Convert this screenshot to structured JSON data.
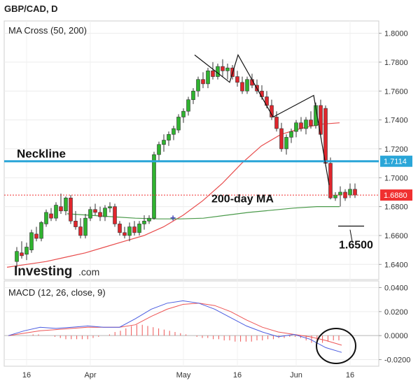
{
  "title": "GBP/CAD, D",
  "chart_data": [
    {
      "type": "candlestick",
      "indicator_label": "MA Cross (50, 200)",
      "y_ticks": [
        "1.8000",
        "1.7800",
        "1.7600",
        "1.7400",
        "1.7200",
        "1.7000",
        "1.6800",
        "1.6600",
        "1.6400"
      ],
      "y_tick_values": [
        1.8,
        1.78,
        1.76,
        1.74,
        1.72,
        1.7,
        1.68,
        1.66,
        1.64
      ],
      "ylim": [
        1.6295,
        1.8085
      ],
      "x_ticks": [
        "16",
        "Apr",
        "May",
        "16",
        "Jun",
        "16"
      ],
      "annotations": {
        "neckline_label": "Neckline",
        "neckline_value": 1.7114,
        "neckline_tag": "1.7114",
        "price_value": 1.688,
        "price_tag": "1.6880",
        "ma200_label": "200-day MA",
        "target_label": "1.6500",
        "brand": "Investing",
        "brand_suffix": ".com"
      },
      "candles": [
        [
          1.642,
          1.652,
          1.638,
          1.649
        ],
        [
          1.648,
          1.656,
          1.644,
          1.646
        ],
        [
          1.647,
          1.655,
          1.643,
          1.652
        ],
        [
          1.65,
          1.664,
          1.648,
          1.662
        ],
        [
          1.661,
          1.666,
          1.656,
          1.658
        ],
        [
          1.658,
          1.67,
          1.656,
          1.669
        ],
        [
          1.668,
          1.678,
          1.666,
          1.676
        ],
        [
          1.675,
          1.679,
          1.67,
          1.672
        ],
        [
          1.672,
          1.683,
          1.67,
          1.681
        ],
        [
          1.68,
          1.689,
          1.675,
          1.677
        ],
        [
          1.677,
          1.687,
          1.674,
          1.686
        ],
        [
          1.686,
          1.688,
          1.668,
          1.67
        ],
        [
          1.67,
          1.677,
          1.664,
          1.666
        ],
        [
          1.666,
          1.672,
          1.658,
          1.66
        ],
        [
          1.66,
          1.675,
          1.658,
          1.672
        ],
        [
          1.672,
          1.68,
          1.67,
          1.678
        ],
        [
          1.678,
          1.682,
          1.674,
          1.676
        ],
        [
          1.676,
          1.68,
          1.67,
          1.673
        ],
        [
          1.673,
          1.681,
          1.67,
          1.679
        ],
        [
          1.679,
          1.683,
          1.676,
          1.68
        ],
        [
          1.68,
          1.682,
          1.666,
          1.668
        ],
        [
          1.668,
          1.67,
          1.66,
          1.662
        ],
        [
          1.662,
          1.666,
          1.658,
          1.66
        ],
        [
          1.66,
          1.669,
          1.656,
          1.666
        ],
        [
          1.666,
          1.67,
          1.66,
          1.662
        ],
        [
          1.662,
          1.67,
          1.66,
          1.668
        ],
        [
          1.668,
          1.674,
          1.664,
          1.67
        ],
        [
          1.67,
          1.674,
          1.668,
          1.672
        ],
        [
          1.672,
          1.718,
          1.671,
          1.716
        ],
        [
          1.716,
          1.725,
          1.712,
          1.723
        ],
        [
          1.723,
          1.73,
          1.718,
          1.726
        ],
        [
          1.726,
          1.732,
          1.722,
          1.73
        ],
        [
          1.73,
          1.736,
          1.726,
          1.734
        ],
        [
          1.733,
          1.744,
          1.731,
          1.742
        ],
        [
          1.742,
          1.748,
          1.738,
          1.746
        ],
        [
          1.746,
          1.756,
          1.743,
          1.754
        ],
        [
          1.754,
          1.762,
          1.751,
          1.76
        ],
        [
          1.76,
          1.77,
          1.756,
          1.768
        ],
        [
          1.768,
          1.773,
          1.762,
          1.765
        ],
        [
          1.765,
          1.776,
          1.762,
          1.774
        ],
        [
          1.774,
          1.78,
          1.768,
          1.77
        ],
        [
          1.77,
          1.779,
          1.768,
          1.777
        ],
        [
          1.777,
          1.782,
          1.77,
          1.774
        ],
        [
          1.774,
          1.779,
          1.768,
          1.776
        ],
        [
          1.776,
          1.778,
          1.768,
          1.77
        ],
        [
          1.77,
          1.774,
          1.763,
          1.766
        ],
        [
          1.766,
          1.77,
          1.758,
          1.76
        ],
        [
          1.76,
          1.77,
          1.758,
          1.768
        ],
        [
          1.768,
          1.772,
          1.762,
          1.764
        ],
        [
          1.764,
          1.768,
          1.758,
          1.76
        ],
        [
          1.76,
          1.764,
          1.754,
          1.756
        ],
        [
          1.756,
          1.76,
          1.748,
          1.75
        ],
        [
          1.75,
          1.754,
          1.74,
          1.742
        ],
        [
          1.742,
          1.746,
          1.732,
          1.734
        ],
        [
          1.734,
          1.738,
          1.718,
          1.72
        ],
        [
          1.72,
          1.73,
          1.716,
          1.728
        ],
        [
          1.728,
          1.734,
          1.724,
          1.732
        ],
        [
          1.732,
          1.74,
          1.728,
          1.738
        ],
        [
          1.738,
          1.742,
          1.732,
          1.734
        ],
        [
          1.734,
          1.742,
          1.73,
          1.74
        ],
        [
          1.74,
          1.746,
          1.734,
          1.736
        ],
        [
          1.736,
          1.752,
          1.734,
          1.75
        ],
        [
          1.75,
          1.754,
          1.728,
          1.73
        ],
        [
          1.748,
          1.75,
          1.708,
          1.71
        ],
        [
          1.71,
          1.714,
          1.685,
          1.686
        ],
        [
          1.686,
          1.69,
          1.684,
          1.688
        ],
        [
          1.688,
          1.694,
          1.68,
          1.69
        ],
        [
          1.69,
          1.692,
          1.684,
          1.686
        ],
        [
          1.688,
          1.696,
          1.686,
          1.692
        ],
        [
          1.692,
          1.696,
          1.686,
          1.688
        ]
      ],
      "sma50": [
        1.638,
        1.64,
        1.642,
        1.645,
        1.648,
        1.652,
        1.656,
        1.66,
        1.666,
        1.674,
        1.684,
        1.696,
        1.71,
        1.722,
        1.73,
        1.734,
        1.737,
        1.738
      ],
      "sma200": [
        1.675,
        1.674,
        1.673,
        1.672,
        1.6715,
        1.6715,
        1.672,
        1.674,
        1.676,
        1.6775,
        1.679,
        1.68,
        1.68
      ]
    },
    {
      "type": "macd",
      "label": "MACD (12, 26, close, 9)",
      "y_ticks": [
        "0.0400",
        "0.0200",
        "0.0000",
        "-0.0200"
      ],
      "y_tick_values": [
        0.04,
        0.02,
        0.0,
        -0.02
      ],
      "ylim": [
        -0.0255,
        0.0455
      ],
      "macd": [
        0.0,
        0.004,
        0.007,
        0.006,
        0.007,
        0.008,
        0.007,
        0.007,
        0.014,
        0.022,
        0.027,
        0.029,
        0.027,
        0.022,
        0.015,
        0.008,
        0.003,
        -0.001,
        0.001,
        -0.003,
        -0.01,
        -0.014
      ],
      "signal": [
        0.0,
        0.002,
        0.004,
        0.005,
        0.006,
        0.007,
        0.007,
        0.007,
        0.009,
        0.016,
        0.022,
        0.026,
        0.027,
        0.025,
        0.02,
        0.013,
        0.007,
        0.003,
        0.001,
        -0.001,
        -0.004,
        -0.008
      ],
      "histogram": [
        0.0,
        0.0,
        0.0,
        0.0,
        0.001,
        0.001,
        0.0,
        0.0,
        -0.001,
        -0.002,
        -0.003,
        -0.003,
        -0.003,
        -0.003,
        -0.003,
        -0.002,
        -0.001,
        0.0,
        0.001,
        0.003,
        0.004,
        0.006,
        0.008,
        0.009,
        0.009,
        0.008,
        0.007,
        0.006,
        0.005,
        0.004,
        0.003,
        0.002,
        0.001,
        0.0,
        -0.001,
        -0.002,
        -0.002,
        -0.003,
        -0.003,
        -0.004,
        -0.004,
        -0.005,
        -0.005,
        -0.005,
        -0.005,
        -0.004,
        -0.004,
        -0.003,
        -0.003,
        -0.002,
        -0.002,
        -0.001,
        -0.001,
        -0.002,
        -0.004,
        -0.006,
        -0.007,
        -0.006,
        -0.005,
        -0.004,
        -0.004
      ]
    }
  ],
  "colors": {
    "bull": "#2fb32f",
    "bear": "#e0262d",
    "neckline": "#2aa6d8",
    "ma50": "#e84c4c",
    "ma200": "#4a9a4a",
    "price_tag": "#f03030",
    "neckline_tag": "#2aa6d8",
    "macd_line": "#4a5ce0",
    "signal_line": "#ee5555"
  }
}
